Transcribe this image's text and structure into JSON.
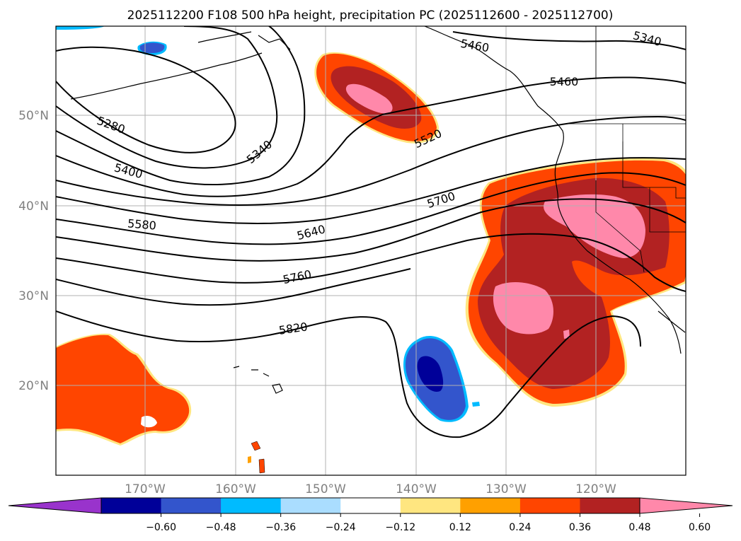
{
  "title": "2025112200 F108 500 hPa height, precipitation PC (2025112600 - 2025112700)",
  "lat_labels": [
    "50°N",
    "40°N",
    "30°N",
    "20°N"
  ],
  "lon_labels": [
    "170°W",
    "160°W",
    "150°W",
    "140°W",
    "130°W",
    "120°W"
  ],
  "contour_labels": {
    "c5280": "5280",
    "c5340a": "5340",
    "c5340b": "5340",
    "c5400": "5400",
    "c5460": "5460",
    "c5460b": "5460",
    "c5520": "5520",
    "c5580": "5580",
    "c5640": "5640",
    "c5700": "5700",
    "c5760": "5760",
    "c5820": "5820"
  },
  "colorbar": {
    "ticks": [
      "−0.60",
      "−0.48",
      "−0.36",
      "−0.24",
      "−0.12",
      "0.12",
      "0.24",
      "0.36",
      "0.48",
      "0.60"
    ],
    "colors": [
      "#9933cc",
      "#000099",
      "#3355cc",
      "#00bbff",
      "#aaddff",
      "#ffffff",
      "#ffe680",
      "#ffa000",
      "#ff4500",
      "#b22222",
      "#ff88aa"
    ]
  }
}
